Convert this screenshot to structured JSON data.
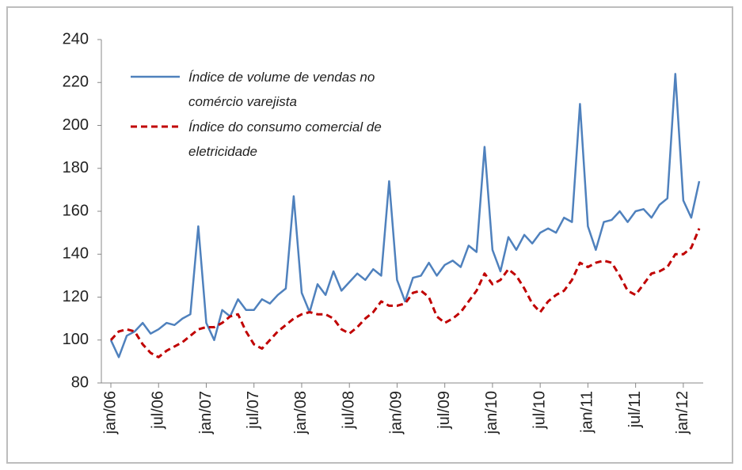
{
  "chart_data": {
    "type": "line",
    "categories": [
      "jan/06",
      null,
      null,
      null,
      null,
      null,
      "jul/06",
      null,
      null,
      null,
      null,
      null,
      "jan/07",
      null,
      null,
      null,
      null,
      null,
      "jul/07",
      null,
      null,
      null,
      null,
      null,
      "jan/08",
      null,
      null,
      null,
      null,
      null,
      "jul/08",
      null,
      null,
      null,
      null,
      null,
      "jan/09",
      null,
      null,
      null,
      null,
      null,
      "jul/09",
      null,
      null,
      null,
      null,
      null,
      "jan/10",
      null,
      null,
      null,
      null,
      null,
      "jul/10",
      null,
      null,
      null,
      null,
      null,
      "jan/11",
      null,
      null,
      null,
      null,
      null,
      "jul/11",
      null,
      null,
      null,
      null,
      null,
      "jan/12",
      null,
      null
    ],
    "series": [
      {
        "name": "Índice de volume de vendas no comércio varejista",
        "color": "#4f81bd",
        "dashed": false,
        "values": [
          100,
          92,
          102,
          104,
          108,
          103,
          105,
          108,
          107,
          110,
          112,
          153,
          108,
          100,
          114,
          111,
          119,
          114,
          114,
          119,
          117,
          121,
          124,
          167,
          122,
          113,
          126,
          121,
          132,
          123,
          127,
          131,
          128,
          133,
          130,
          174,
          128,
          118,
          129,
          130,
          136,
          130,
          135,
          137,
          134,
          144,
          141,
          190,
          142,
          132,
          148,
          142,
          149,
          145,
          150,
          152,
          150,
          157,
          155,
          210,
          153,
          142,
          155,
          156,
          160,
          155,
          160,
          161,
          157,
          163,
          166,
          224,
          165,
          157,
          174
        ]
      },
      {
        "name": "Índice do consumo comercial de eletricidade",
        "color": "#c00000",
        "dashed": true,
        "values": [
          100,
          104,
          105,
          104,
          98,
          94,
          92,
          95,
          97,
          99,
          102,
          105,
          106,
          106,
          108,
          111,
          112,
          104,
          98,
          96,
          100,
          104,
          107,
          110,
          112,
          113,
          112,
          112,
          110,
          105,
          103,
          106,
          110,
          113,
          118,
          116,
          116,
          117,
          122,
          123,
          120,
          111,
          108,
          110,
          113,
          118,
          123,
          131,
          126,
          128,
          133,
          130,
          124,
          117,
          113,
          118,
          121,
          123,
          128,
          136,
          134,
          136,
          137,
          136,
          130,
          123,
          121,
          126,
          131,
          132,
          134,
          140,
          140,
          143,
          152
        ]
      }
    ],
    "ylim": [
      80,
      240
    ],
    "yticks": [
      80,
      100,
      120,
      140,
      160,
      180,
      200,
      220,
      240
    ],
    "grid": false,
    "legend": "upper left"
  }
}
